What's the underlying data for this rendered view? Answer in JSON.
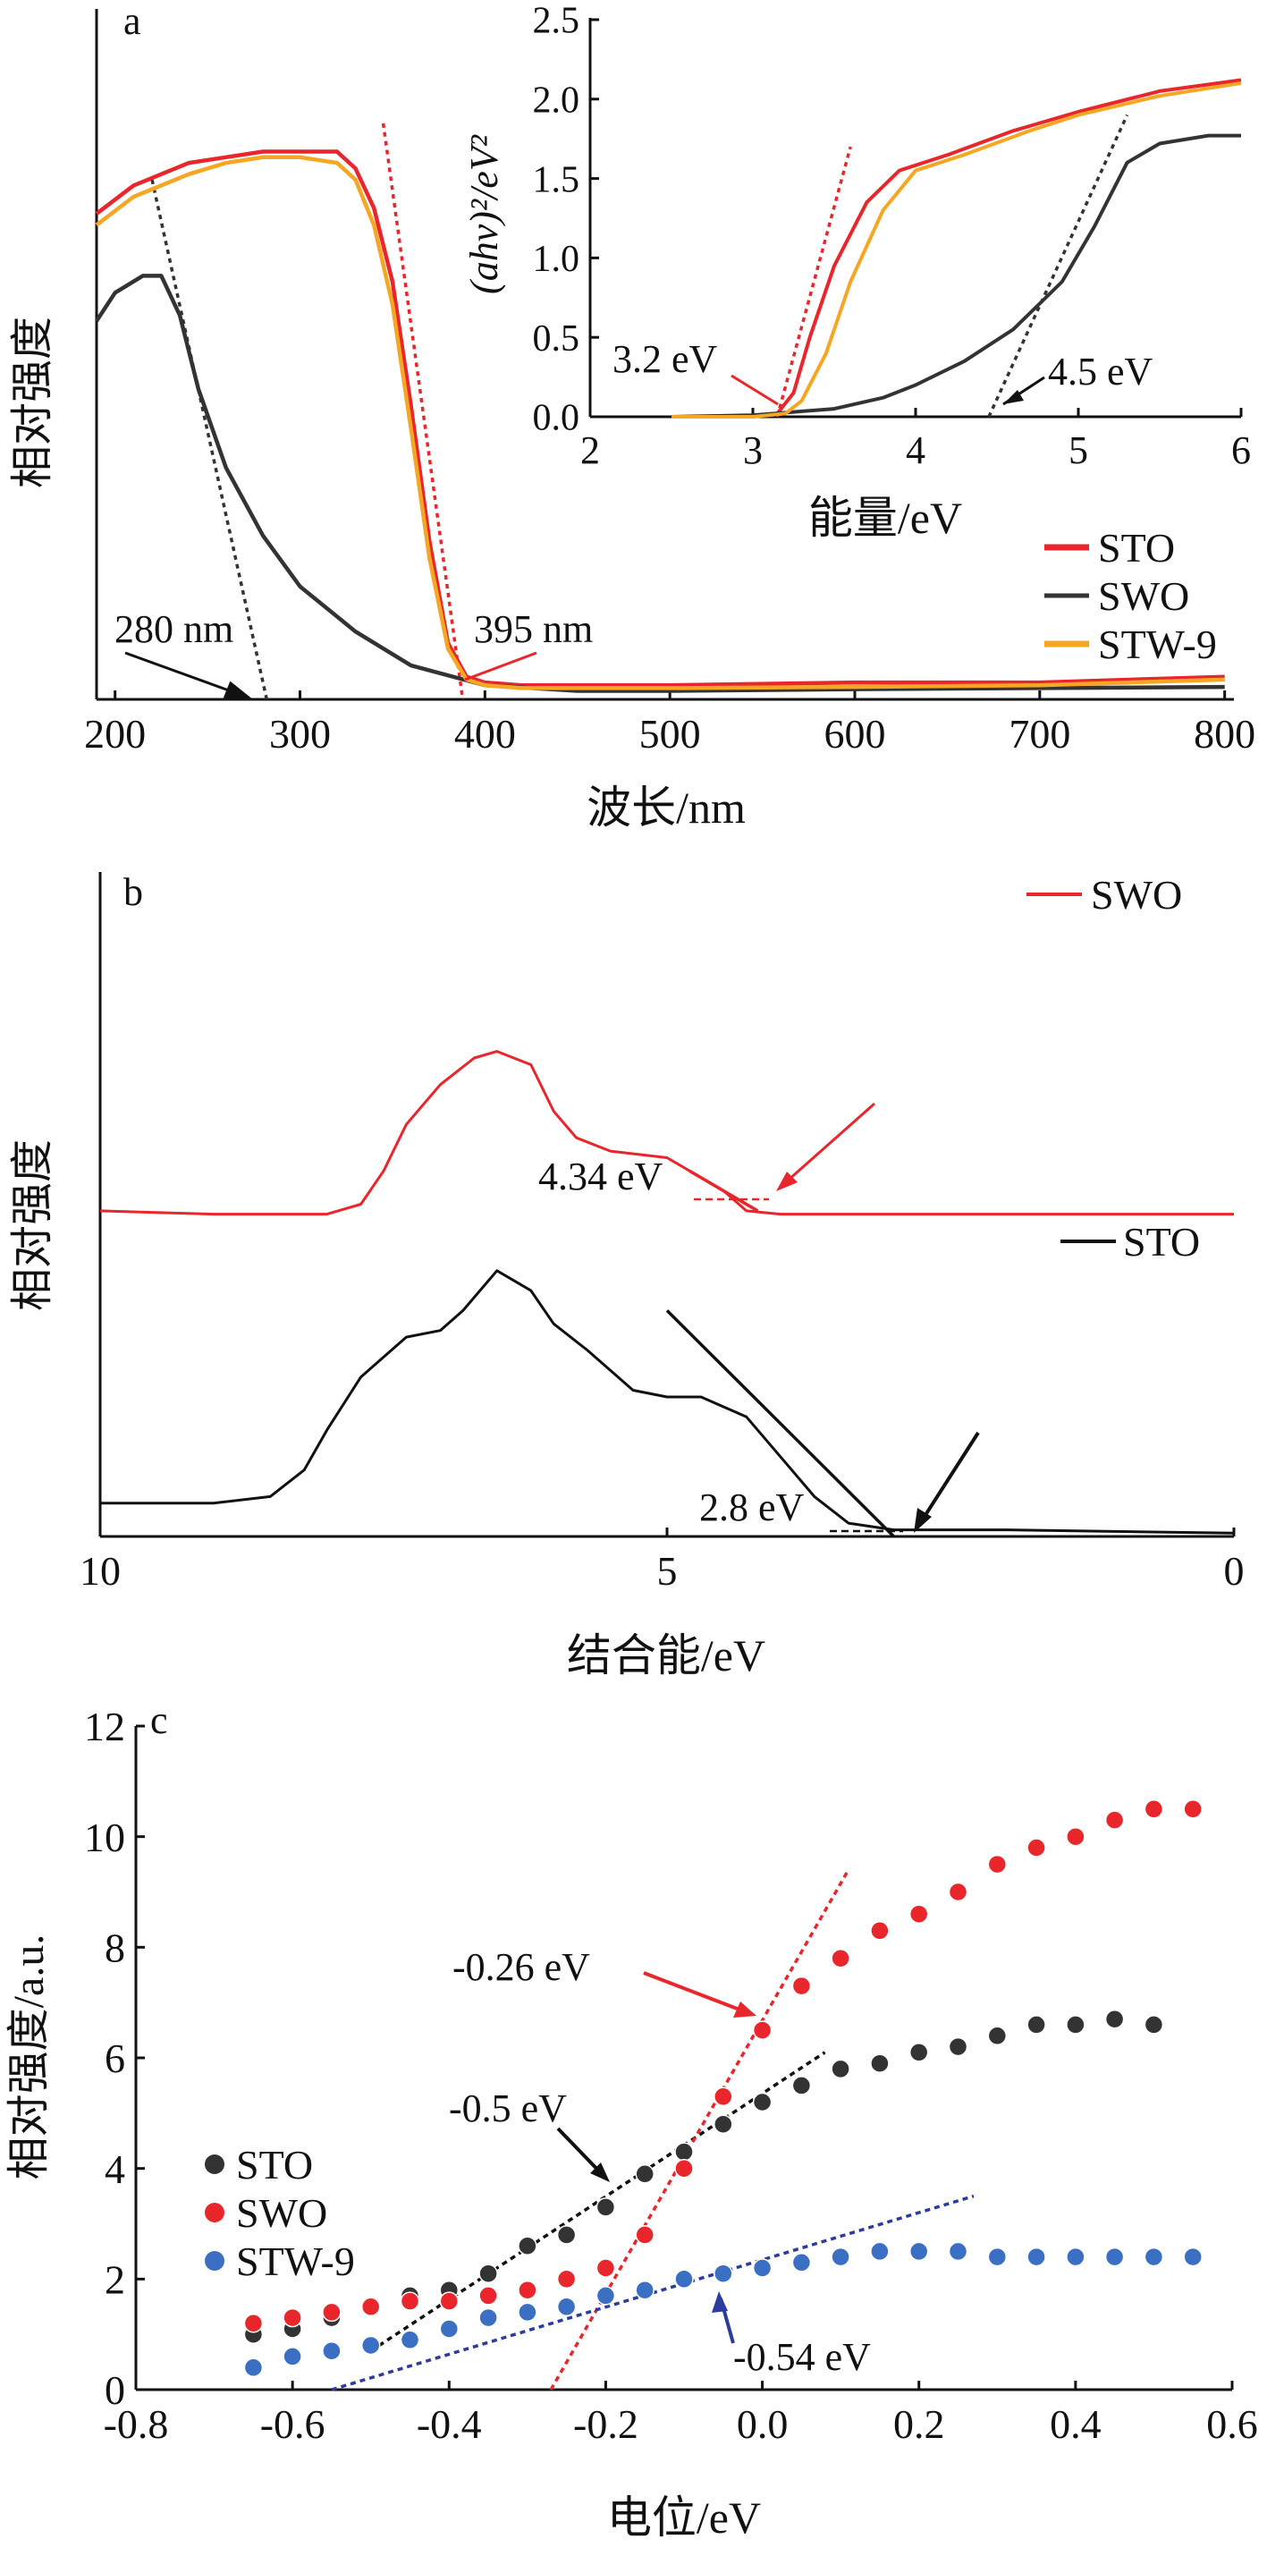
{
  "chart_data": [
    {
      "panel": "a",
      "type": "line",
      "xlabel": "波长/nm",
      "ylabel": "相对强度",
      "xlim": [
        190,
        805
      ],
      "ylim": [
        0,
        1.08
      ],
      "xticks": [
        200,
        300,
        400,
        500,
        600,
        700,
        800
      ],
      "legend": {
        "placement": "bottom-right",
        "entries": [
          "STO",
          "SWO",
          "STW-9"
        ]
      },
      "series": [
        {
          "name": "STO",
          "color": "#e8262b",
          "x": [
            190,
            210,
            240,
            260,
            280,
            300,
            320,
            330,
            340,
            350,
            360,
            370,
            380,
            390,
            400,
            420,
            450,
            500,
            600,
            700,
            800
          ],
          "y": [
            0.86,
            0.91,
            0.95,
            0.96,
            0.97,
            0.97,
            0.97,
            0.94,
            0.87,
            0.74,
            0.52,
            0.28,
            0.1,
            0.04,
            0.03,
            0.025,
            0.025,
            0.025,
            0.03,
            0.03,
            0.04
          ]
        },
        {
          "name": "SWO",
          "color": "#333333",
          "x": [
            190,
            200,
            215,
            225,
            235,
            245,
            260,
            280,
            300,
            330,
            360,
            400,
            450,
            500,
            600,
            700,
            800
          ],
          "y": [
            0.67,
            0.72,
            0.75,
            0.75,
            0.68,
            0.55,
            0.41,
            0.29,
            0.2,
            0.12,
            0.06,
            0.025,
            0.015,
            0.015,
            0.018,
            0.02,
            0.022
          ]
        },
        {
          "name": "STW-9",
          "color": "#f5a623",
          "x": [
            190,
            210,
            240,
            260,
            280,
            300,
            320,
            330,
            340,
            350,
            360,
            370,
            380,
            390,
            400,
            420,
            450,
            500,
            600,
            700,
            800
          ],
          "y": [
            0.84,
            0.89,
            0.93,
            0.95,
            0.96,
            0.96,
            0.95,
            0.92,
            0.84,
            0.7,
            0.48,
            0.25,
            0.09,
            0.035,
            0.025,
            0.02,
            0.02,
            0.02,
            0.022,
            0.025,
            0.035
          ]
        }
      ],
      "tangents": [
        {
          "color": "#333333",
          "x": [
            220,
            282
          ],
          "y": [
            0.92,
            0.0
          ]
        },
        {
          "color": "#e8262b",
          "x": [
            345,
            388
          ],
          "y": [
            1.02,
            0.0
          ]
        }
      ],
      "annotations": [
        {
          "text": "280 nm",
          "x": 235,
          "y": 0.1
        },
        {
          "text": "395 nm",
          "x": 408,
          "y": 0.1
        }
      ],
      "inset": {
        "xlabel": "能量/eV",
        "ylabel": "(ahv)²/eV²",
        "xlim": [
          2,
          6
        ],
        "ylim": [
          0,
          2.5
        ],
        "xticks": [
          2,
          3,
          4,
          5,
          6
        ],
        "yticks": [
          0.0,
          0.5,
          1.0,
          1.5,
          2.0,
          2.5
        ],
        "series": [
          {
            "name": "STO",
            "color": "#e8262b",
            "x": [
              2.5,
              3.0,
              3.15,
              3.25,
              3.35,
              3.5,
              3.7,
              3.9,
              4.2,
              4.6,
              5.0,
              5.5,
              6.0
            ],
            "y": [
              0.0,
              0.0,
              0.02,
              0.15,
              0.5,
              0.95,
              1.35,
              1.55,
              1.65,
              1.8,
              1.92,
              2.05,
              2.12
            ]
          },
          {
            "name": "SWO",
            "color": "#333333",
            "x": [
              2.5,
              3.0,
              3.5,
              3.8,
              4.0,
              4.3,
              4.6,
              4.9,
              5.1,
              5.3,
              5.5,
              5.8,
              6.0
            ],
            "y": [
              0.0,
              0.01,
              0.05,
              0.12,
              0.2,
              0.35,
              0.55,
              0.85,
              1.2,
              1.6,
              1.72,
              1.77,
              1.77
            ]
          },
          {
            "name": "STW-9",
            "color": "#f5a623",
            "x": [
              2.5,
              3.0,
              3.2,
              3.3,
              3.45,
              3.6,
              3.8,
              4.0,
              4.3,
              4.7,
              5.0,
              5.5,
              6.0
            ],
            "y": [
              0.0,
              0.0,
              0.02,
              0.1,
              0.4,
              0.85,
              1.3,
              1.55,
              1.65,
              1.8,
              1.9,
              2.02,
              2.1
            ]
          }
        ],
        "tangents": [
          {
            "color": "#e8262b",
            "x": [
              3.15,
              3.6
            ],
            "y": [
              0.0,
              1.7
            ]
          },
          {
            "color": "#333333",
            "x": [
              4.45,
              5.3
            ],
            "y": [
              0.0,
              1.9
            ]
          }
        ],
        "annotations": [
          {
            "text": "3.2 eV",
            "x": 2.2,
            "y": 0.28
          },
          {
            "text": "4.5 eV",
            "x": 4.85,
            "y": 0.22
          }
        ]
      }
    },
    {
      "panel": "b",
      "type": "line",
      "xlabel": "结合能/eV",
      "ylabel": "相对强度",
      "xlim": [
        10,
        0
      ],
      "ylim": [
        0,
        1
      ],
      "xticks": [
        10,
        5,
        0
      ],
      "series": [
        {
          "name": "SWO",
          "color": "#e8262b",
          "x": [
            10,
            9.0,
            8.0,
            7.7,
            7.5,
            7.3,
            7.0,
            6.7,
            6.5,
            6.2,
            6.0,
            5.8,
            5.5,
            5.0,
            4.8,
            4.5,
            4.3,
            4.0,
            3.0,
            2.0,
            0.0
          ],
          "y": [
            0.49,
            0.485,
            0.485,
            0.5,
            0.55,
            0.62,
            0.68,
            0.72,
            0.73,
            0.71,
            0.64,
            0.6,
            0.58,
            0.57,
            0.55,
            0.52,
            0.49,
            0.485,
            0.485,
            0.485,
            0.485
          ]
        },
        {
          "name": "STO",
          "color": "#111111",
          "x": [
            10,
            9.0,
            8.5,
            8.2,
            8.0,
            7.7,
            7.3,
            7.0,
            6.8,
            6.5,
            6.2,
            6.0,
            5.7,
            5.3,
            5.0,
            4.7,
            4.3,
            4.0,
            3.7,
            3.4,
            3.0,
            2.0,
            0.0
          ],
          "y": [
            0.05,
            0.05,
            0.06,
            0.1,
            0.16,
            0.24,
            0.3,
            0.31,
            0.34,
            0.4,
            0.37,
            0.32,
            0.28,
            0.22,
            0.21,
            0.21,
            0.18,
            0.12,
            0.06,
            0.02,
            0.01,
            0.01,
            0.005
          ]
        }
      ],
      "tangents": [
        {
          "color": "#e8262b",
          "x": [
            4.8,
            4.2
          ],
          "y": [
            0.55,
            0.49
          ]
        },
        {
          "color": "#111111",
          "x": [
            5.0,
            3.0
          ],
          "y": [
            0.34,
            0.0
          ]
        }
      ],
      "annotations": [
        {
          "text": "4.34 eV",
          "x": 6.0,
          "y": 0.49
        },
        {
          "text": "2.8 eV",
          "x": 4.3,
          "y": 0.04
        }
      ],
      "legend": [
        "SWO",
        "STO"
      ]
    },
    {
      "panel": "c",
      "type": "scatter",
      "xlabel": "电位/eV",
      "ylabel": "相对强度/a.u.",
      "xlim": [
        -0.8,
        0.6
      ],
      "ylim": [
        0,
        12
      ],
      "xticks": [
        -0.8,
        -0.6,
        -0.4,
        -0.2,
        0.0,
        0.2,
        0.4,
        0.6
      ],
      "yticks": [
        0,
        2,
        4,
        6,
        8,
        10,
        12
      ],
      "legend": {
        "placement": "left",
        "entries": [
          "STO",
          "SWO",
          "STW-9"
        ]
      },
      "series": [
        {
          "name": "STO",
          "color": "#333333",
          "x": [
            -0.65,
            -0.6,
            -0.55,
            -0.5,
            -0.45,
            -0.4,
            -0.35,
            -0.3,
            -0.25,
            -0.2,
            -0.15,
            -0.1,
            -0.05,
            0.0,
            0.05,
            0.1,
            0.15,
            0.2,
            0.25,
            0.3,
            0.35,
            0.4,
            0.45,
            0.5
          ],
          "y": [
            1.0,
            1.1,
            1.3,
            1.5,
            1.7,
            1.8,
            2.1,
            2.6,
            2.8,
            3.3,
            3.9,
            4.3,
            4.8,
            5.2,
            5.5,
            5.8,
            5.9,
            6.1,
            6.2,
            6.4,
            6.6,
            6.6,
            6.7,
            6.6
          ]
        },
        {
          "name": "SWO",
          "color": "#e8262b",
          "x": [
            -0.65,
            -0.6,
            -0.55,
            -0.5,
            -0.45,
            -0.4,
            -0.35,
            -0.3,
            -0.25,
            -0.2,
            -0.15,
            -0.1,
            -0.05,
            0.0,
            0.05,
            0.1,
            0.15,
            0.2,
            0.25,
            0.3,
            0.35,
            0.4,
            0.45,
            0.5,
            0.55
          ],
          "y": [
            1.2,
            1.3,
            1.4,
            1.5,
            1.6,
            1.6,
            1.7,
            1.8,
            2.0,
            2.2,
            2.8,
            4.0,
            5.3,
            6.5,
            7.3,
            7.8,
            8.3,
            8.6,
            9.0,
            9.5,
            9.8,
            10.0,
            10.3,
            10.5,
            10.5
          ]
        },
        {
          "name": "STW-9",
          "color": "#3b6fc4",
          "x": [
            -0.65,
            -0.6,
            -0.55,
            -0.5,
            -0.45,
            -0.4,
            -0.35,
            -0.3,
            -0.25,
            -0.2,
            -0.15,
            -0.1,
            -0.05,
            0.0,
            0.05,
            0.1,
            0.15,
            0.2,
            0.25,
            0.3,
            0.35,
            0.4,
            0.45,
            0.5,
            0.55
          ],
          "y": [
            0.4,
            0.6,
            0.7,
            0.8,
            0.9,
            1.1,
            1.3,
            1.4,
            1.5,
            1.7,
            1.8,
            2.0,
            2.1,
            2.2,
            2.3,
            2.4,
            2.5,
            2.5,
            2.5,
            2.4,
            2.4,
            2.4,
            2.4,
            2.4,
            2.4
          ]
        }
      ],
      "tangents": [
        {
          "color": "#111111",
          "x": [
            -0.5,
            0.08
          ],
          "y": [
            0.7,
            6.1
          ]
        },
        {
          "color": "#e8262b",
          "x": [
            -0.27,
            0.11
          ],
          "y": [
            0.0,
            9.4
          ]
        },
        {
          "color": "#2b3c9e",
          "x": [
            -0.55,
            0.27
          ],
          "y": [
            0.0,
            3.5
          ]
        }
      ],
      "annotations": [
        {
          "text": "-0.26 eV",
          "x": -0.38,
          "y": 7.6
        },
        {
          "text": "-0.5 eV",
          "x": -0.36,
          "y": 4.5
        },
        {
          "text": "-0.54 eV",
          "x": -0.06,
          "y": 0.9
        }
      ]
    }
  ],
  "panel_labels": [
    "a",
    "b",
    "c"
  ]
}
